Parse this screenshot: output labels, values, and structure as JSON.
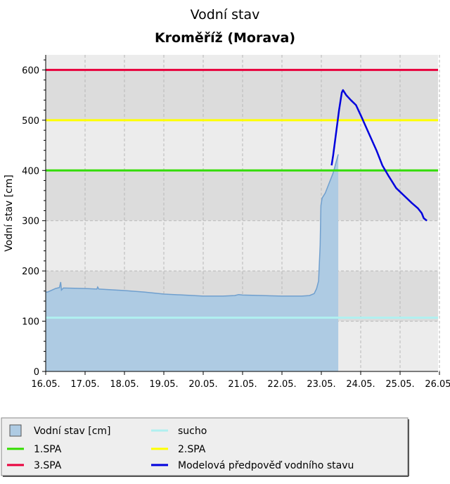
{
  "chart_data": {
    "type": "area",
    "title": "Vodní stav",
    "subtitle": "Kroměříž (Morava)",
    "xlabel": "",
    "ylabel": "Vodní stav [cm]",
    "x_range": [
      "16.05.",
      "26.05."
    ],
    "ylim": [
      0,
      630
    ],
    "y_ticks": [
      0,
      100,
      200,
      300,
      400,
      500,
      600
    ],
    "x_ticks": [
      "16.05.",
      "17.05.",
      "18.05.",
      "19.05.",
      "20.05.",
      "21.05.",
      "22.05.",
      "23.05.",
      "24.05.",
      "25.05.",
      "26.05."
    ],
    "grid": true,
    "legend_position": "bottom",
    "thresholds": [
      {
        "key": "sucho",
        "label": "sucho",
        "value": 107,
        "color": "#b0f0f0"
      },
      {
        "key": "spa1",
        "label": "1.SPA",
        "value": 400,
        "color": "#33dd00"
      },
      {
        "key": "spa2",
        "label": "2.SPA",
        "value": 500,
        "color": "#ffff00"
      },
      {
        "key": "spa3",
        "label": "3.SPA",
        "value": 600,
        "color": "#e8003c"
      }
    ],
    "series": [
      {
        "name": "Vodní stav [cm]",
        "kind": "area",
        "color": "#6f9fce",
        "fill": "#aecbe3",
        "points": [
          [
            0,
            158
          ],
          [
            0.05,
            158
          ],
          [
            0.25,
            165
          ],
          [
            0.35,
            167
          ],
          [
            0.38,
            178
          ],
          [
            0.4,
            162
          ],
          [
            0.45,
            166
          ],
          [
            1.0,
            165
          ],
          [
            1.3,
            164
          ],
          [
            1.32,
            168
          ],
          [
            1.35,
            164
          ],
          [
            2.0,
            161
          ],
          [
            2.5,
            158
          ],
          [
            3.0,
            154
          ],
          [
            3.5,
            152
          ],
          [
            4.0,
            150
          ],
          [
            4.5,
            150
          ],
          [
            4.8,
            151
          ],
          [
            4.9,
            153
          ],
          [
            5.0,
            152
          ],
          [
            5.5,
            151
          ],
          [
            6.0,
            150
          ],
          [
            6.5,
            150
          ],
          [
            6.7,
            151
          ],
          [
            6.82,
            155
          ],
          [
            6.88,
            165
          ],
          [
            6.93,
            180
          ],
          [
            6.97,
            250
          ],
          [
            6.99,
            330
          ],
          [
            7.02,
            345
          ],
          [
            7.1,
            355
          ],
          [
            7.2,
            375
          ],
          [
            7.3,
            395
          ],
          [
            7.38,
            418
          ],
          [
            7.43,
            432
          ]
        ]
      },
      {
        "name": "Modelová předpověď vodního stavu",
        "kind": "line",
        "color": "#0000dd",
        "points": [
          [
            7.26,
            410
          ],
          [
            7.3,
            430
          ],
          [
            7.38,
            478
          ],
          [
            7.45,
            520
          ],
          [
            7.52,
            555
          ],
          [
            7.55,
            560
          ],
          [
            7.63,
            550
          ],
          [
            7.75,
            540
          ],
          [
            7.88,
            530
          ],
          [
            8.0,
            510
          ],
          [
            8.2,
            475
          ],
          [
            8.4,
            440
          ],
          [
            8.55,
            410
          ],
          [
            8.7,
            390
          ],
          [
            8.9,
            365
          ],
          [
            9.1,
            350
          ],
          [
            9.3,
            335
          ],
          [
            9.45,
            325
          ],
          [
            9.55,
            315
          ],
          [
            9.6,
            305
          ],
          [
            9.68,
            300
          ]
        ]
      }
    ]
  },
  "legend": {
    "items": [
      {
        "label": "Vodní stav [cm]",
        "symbol": "box",
        "color": "#aecbe3"
      },
      {
        "label": "sucho",
        "symbol": "line",
        "color": "#b0f0f0"
      },
      {
        "label": "1.SPA",
        "symbol": "line",
        "color": "#33dd00"
      },
      {
        "label": "2.SPA",
        "symbol": "line",
        "color": "#ffff00"
      },
      {
        "label": "3.SPA",
        "symbol": "line",
        "color": "#e8003c"
      },
      {
        "label": "Modelová předpověď vodního stavu",
        "symbol": "line",
        "color": "#0000dd"
      }
    ]
  }
}
